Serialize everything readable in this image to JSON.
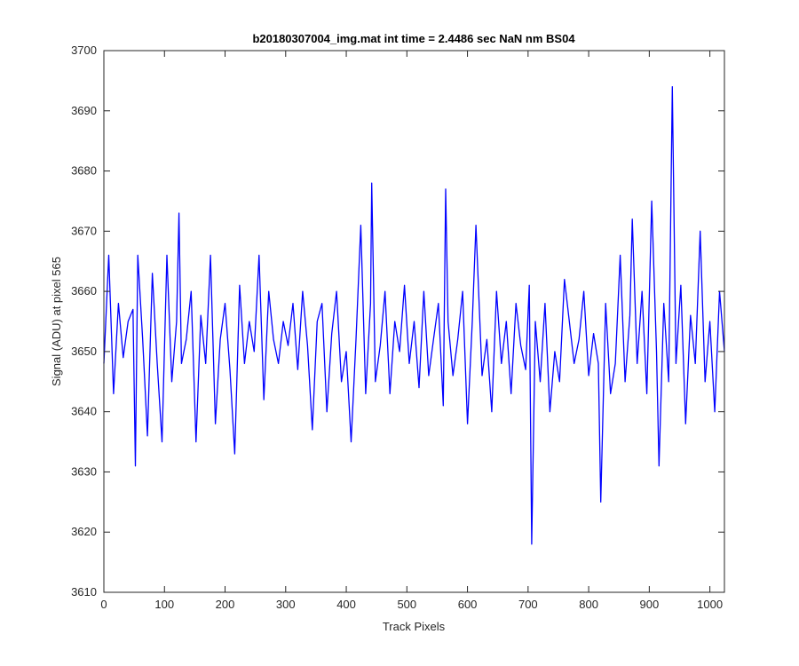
{
  "chart_data": {
    "type": "line",
    "title": "b20180307004_img.mat int time = 2.4486 sec  NaN nm BS04",
    "xlabel": "Track Pixels",
    "ylabel": "Signal (ADU) at pixel 565",
    "xlim": [
      0,
      1024
    ],
    "ylim": [
      3610,
      3700
    ],
    "xticks": [
      0,
      100,
      200,
      300,
      400,
      500,
      600,
      700,
      800,
      900,
      1000
    ],
    "yticks": [
      3610,
      3620,
      3630,
      3640,
      3650,
      3660,
      3670,
      3680,
      3690,
      3700
    ],
    "grid": false,
    "line_color": "#0000FF",
    "series": [
      {
        "x": [
          0,
          8,
          16,
          24,
          32,
          40,
          48,
          52,
          56,
          64,
          72,
          80,
          88,
          96,
          104,
          112,
          120,
          124,
          128,
          136,
          144,
          152,
          160,
          168,
          176,
          184,
          192,
          200,
          208,
          216,
          224,
          232,
          240,
          248,
          256,
          264,
          272,
          280,
          288,
          296,
          304,
          312,
          320,
          328,
          336,
          344,
          352,
          360,
          368,
          376,
          384,
          392,
          400,
          408,
          416,
          424,
          432,
          440,
          442,
          448,
          456,
          464,
          472,
          480,
          488,
          496,
          504,
          512,
          520,
          528,
          536,
          544,
          552,
          560,
          564,
          568,
          576,
          584,
          592,
          600,
          608,
          614,
          624,
          632,
          640,
          648,
          656,
          664,
          672,
          680,
          688,
          696,
          702,
          706,
          712,
          720,
          728,
          736,
          744,
          752,
          760,
          768,
          776,
          784,
          792,
          800,
          808,
          816,
          820,
          828,
          836,
          844,
          852,
          860,
          868,
          872,
          880,
          888,
          896,
          904,
          912,
          916,
          924,
          932,
          938,
          944,
          952,
          960,
          968,
          976,
          984,
          992,
          1000,
          1008,
          1016,
          1024
        ],
        "values": [
          3648,
          3666,
          3643,
          3658,
          3649,
          3655,
          3657,
          3631,
          3666,
          3652,
          3636,
          3663,
          3648,
          3635,
          3666,
          3645,
          3655,
          3673,
          3648,
          3652,
          3660,
          3635,
          3656,
          3648,
          3666,
          3638,
          3652,
          3658,
          3647,
          3633,
          3661,
          3648,
          3655,
          3650,
          3666,
          3642,
          3660,
          3652,
          3648,
          3655,
          3651,
          3658,
          3647,
          3660,
          3651,
          3637,
          3655,
          3658,
          3640,
          3653,
          3660,
          3645,
          3650,
          3635,
          3652,
          3671,
          3643,
          3658,
          3678,
          3645,
          3651,
          3660,
          3643,
          3655,
          3650,
          3661,
          3648,
          3655,
          3644,
          3660,
          3646,
          3652,
          3658,
          3641,
          3677,
          3655,
          3646,
          3652,
          3660,
          3638,
          3655,
          3671,
          3646,
          3652,
          3640,
          3660,
          3648,
          3655,
          3643,
          3658,
          3651,
          3647,
          3661,
          3618,
          3655,
          3645,
          3658,
          3640,
          3650,
          3645,
          3662,
          3655,
          3648,
          3652,
          3660,
          3646,
          3653,
          3648,
          3625,
          3658,
          3643,
          3648,
          3666,
          3645,
          3656,
          3672,
          3648,
          3660,
          3643,
          3675,
          3650,
          3631,
          3658,
          3645,
          3694,
          3648,
          3661,
          3638,
          3656,
          3648,
          3670,
          3645,
          3655,
          3640,
          3660,
          3650
        ]
      }
    ]
  }
}
